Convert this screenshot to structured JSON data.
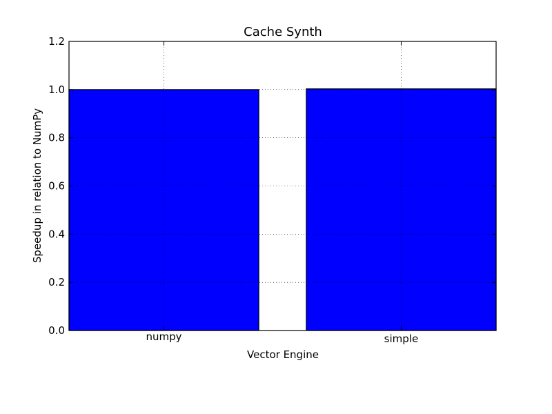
{
  "chart_data": {
    "type": "bar",
    "title": "Cache Synth",
    "xlabel": "Vector Engine",
    "ylabel": "Speedup in relation to NumPy",
    "categories": [
      "numpy",
      "simple"
    ],
    "values": [
      1.0,
      1.003
    ],
    "ylim": [
      0,
      1.2
    ],
    "yticks": [
      "0.0",
      "0.2",
      "0.4",
      "0.6",
      "0.8",
      "1.0",
      "1.2"
    ],
    "ytick_values": [
      0.0,
      0.2,
      0.4,
      0.6,
      0.8,
      1.0,
      1.2
    ],
    "grid": true,
    "legend": false,
    "colors": {
      "bar": "#0000ff",
      "edge": "#000000"
    }
  }
}
